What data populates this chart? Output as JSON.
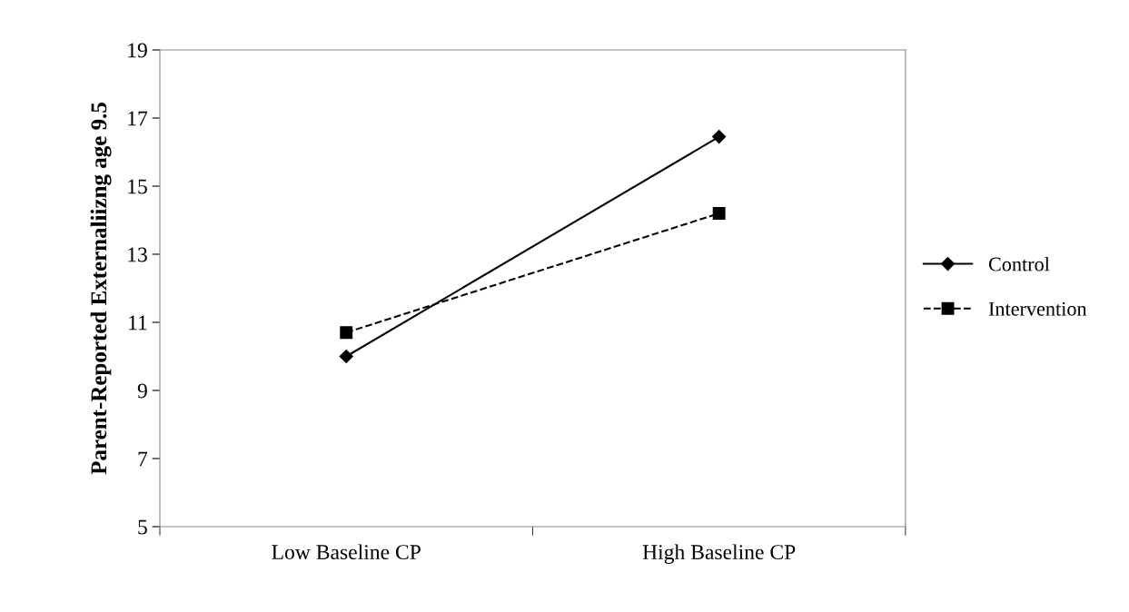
{
  "chart_data": {
    "type": "line",
    "ylabel": "Parent-Reported Externaliizng age 9.5",
    "categories": [
      "Low Baseline CP",
      "High Baseline CP"
    ],
    "series": [
      {
        "name": "Control",
        "color": "#000000",
        "values": [
          10.0,
          16.45
        ],
        "marker": "diamond",
        "line_style": "solid"
      },
      {
        "name": "Intervention",
        "color": "#000000",
        "values": [
          10.7,
          14.2
        ],
        "marker": "square",
        "line_style": "dashed"
      }
    ],
    "ylim": [
      5,
      19
    ],
    "yticks": [
      5,
      7,
      9,
      11,
      13,
      15,
      17,
      19
    ],
    "grid": false,
    "legend": "right"
  }
}
